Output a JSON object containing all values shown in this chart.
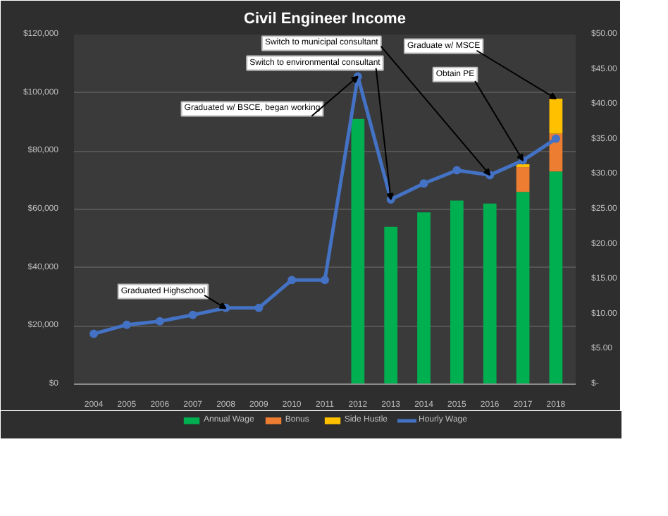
{
  "chart_data": {
    "type": "bar",
    "title": "Civil Engineer Income",
    "categories": [
      "2004",
      "2005",
      "2006",
      "2007",
      "2008",
      "2009",
      "2010",
      "2011",
      "2012",
      "2013",
      "2014",
      "2015",
      "2016",
      "2017",
      "2018"
    ],
    "stacked": true,
    "series": [
      {
        "name": "Annual Wage",
        "type": "bar",
        "color": "#00b050",
        "values": [
          null,
          null,
          null,
          null,
          null,
          null,
          null,
          null,
          91000,
          54000,
          59000,
          63000,
          62000,
          66000,
          73000
        ]
      },
      {
        "name": "Bonus",
        "type": "bar",
        "color": "#ed7d31",
        "values": [
          null,
          null,
          null,
          null,
          null,
          null,
          null,
          null,
          null,
          null,
          null,
          null,
          null,
          8500,
          13000
        ]
      },
      {
        "name": "Side Hustle",
        "type": "bar",
        "color": "#ffc000",
        "values": [
          null,
          null,
          null,
          null,
          null,
          null,
          null,
          null,
          null,
          null,
          null,
          null,
          null,
          1000,
          12000
        ]
      },
      {
        "name": "Hourly Wage",
        "type": "line",
        "axis": "y2",
        "color": "#4472c4",
        "values": [
          7.2,
          8.5,
          9.0,
          9.9,
          10.9,
          10.9,
          14.9,
          14.9,
          44.0,
          26.4,
          28.7,
          30.6,
          29.9,
          32.0,
          35.1
        ]
      }
    ],
    "ylim": [
      0,
      120000
    ],
    "yticks": [
      {
        "value": 0,
        "label": "$0"
      },
      {
        "value": 20000,
        "label": "$20,000"
      },
      {
        "value": 40000,
        "label": "$40,000"
      },
      {
        "value": 60000,
        "label": "$60,000"
      },
      {
        "value": 80000,
        "label": "$80,000"
      },
      {
        "value": 100000,
        "label": "$100,000"
      },
      {
        "value": 120000,
        "label": "$120,000"
      }
    ],
    "y2lim": [
      0,
      50
    ],
    "y2ticks": [
      {
        "value": 0,
        "label": "$-"
      },
      {
        "value": 5,
        "label": "$5.00"
      },
      {
        "value": 10,
        "label": "$10.00"
      },
      {
        "value": 15,
        "label": "$15.00"
      },
      {
        "value": 20,
        "label": "$20.00"
      },
      {
        "value": 25,
        "label": "$25.00"
      },
      {
        "value": 30,
        "label": "$30.00"
      },
      {
        "value": 35,
        "label": "$35.00"
      },
      {
        "value": 40,
        "label": "$40.00"
      },
      {
        "value": 45,
        "label": "$45.00"
      },
      {
        "value": 50,
        "label": "$50.00"
      }
    ],
    "annotations": [
      {
        "text": "Graduated Highschool",
        "x": "2008",
        "y": 26000
      },
      {
        "text": "Graduated w/ BSCE, began working",
        "x": "2012",
        "y": 105600
      },
      {
        "text": "Switch to environmental consultant",
        "x": "2013",
        "y": 63400
      },
      {
        "text": "Switch to municipal consultant",
        "x": "2016",
        "y": 71800
      },
      {
        "text": "Obtain PE",
        "x": "2017",
        "y": 76800
      },
      {
        "text": "Graduate w/ MSCE",
        "x": "2018",
        "y": 98000
      }
    ],
    "grid": "y",
    "legend": "bottom",
    "marker": "circle",
    "line_style": "solid"
  }
}
